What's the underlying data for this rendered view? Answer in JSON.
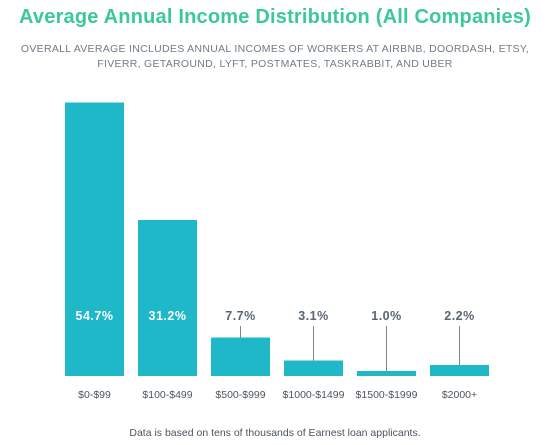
{
  "chart_data": {
    "type": "bar",
    "title": "Average Annual Income Distribution (All Companies)",
    "subtitle": "OVERALL AVERAGE INCLUDES ANNUAL INCOMES OF WORKERS AT AIRBNB, DOORDASH, ETSY, FIVERR, GETAROUND, LYFT, POSTMATES, TASKRABBIT, AND UBER",
    "categories": [
      "$0-$99",
      "$100-$499",
      "$500-$999",
      "$1000-$1499",
      "$1500-$1999",
      "$2000+"
    ],
    "values": [
      54.7,
      31.2,
      7.7,
      3.1,
      1.0,
      2.2
    ],
    "data_labels": [
      "54.7%",
      "31.2%",
      "7.7%",
      "3.1%",
      "1.0%",
      "2.2%"
    ],
    "ylim": [
      0,
      56
    ],
    "bar_color": "#1fb8c9",
    "inside_label_color": "#ffffff",
    "outside_label_color": "#5a6570",
    "leader_color": "#7b858e",
    "footnote": "Data is based on tens of thousands of Earnest loan applicants."
  }
}
